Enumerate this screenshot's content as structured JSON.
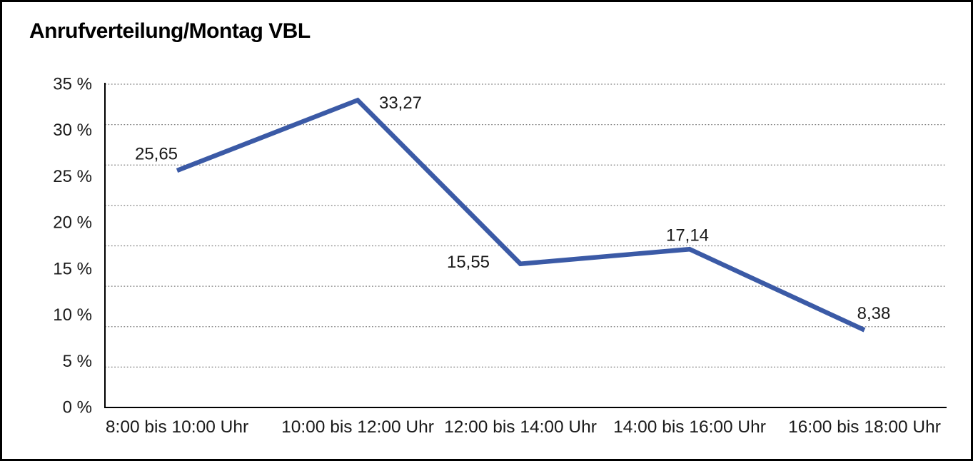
{
  "window": {
    "background": "#ffffff",
    "border_color": "#000000"
  },
  "chart_data": {
    "type": "line",
    "title": "Anrufverteilung/Montag VBL",
    "categories": [
      "8:00 bis 10:00 Uhr",
      "10:00 bis 12:00 Uhr",
      "12:00 bis 14:00 Uhr",
      "14:00 bis 16:00 Uhr",
      "16:00 bis 18:00 Uhr"
    ],
    "values": [
      25.65,
      33.27,
      15.55,
      17.14,
      8.38
    ],
    "point_labels": [
      "25,65",
      "33,27",
      "15,55",
      "17,14",
      "8,38"
    ],
    "y_tick_labels": [
      "35 %",
      "30 %",
      "25 %",
      "20 %",
      "15 %",
      "10 %",
      "5 %",
      "0 %"
    ],
    "ylim": [
      0,
      35
    ],
    "xlabel": "",
    "ylabel": "",
    "grid": "horizontal-dotted",
    "legend": "none",
    "line_color": "#3b5aa6",
    "grid_color": "#7f7f7f",
    "axis_color": "#000000",
    "text_color": "#1a1a1a"
  }
}
